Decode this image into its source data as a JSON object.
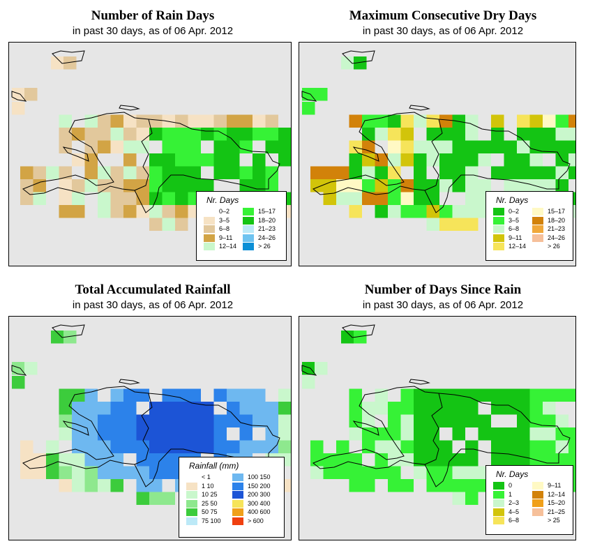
{
  "panels": [
    {
      "id": "rain_days",
      "title": "Number of Rain Days",
      "subtitle": "in past 30 days, as of  06 Apr. 2012",
      "legend": {
        "title": "Nr. Days",
        "items": [
          {
            "label": "0–2",
            "color": "#ffffff"
          },
          {
            "label": "3–5",
            "color": "#f6e2c4"
          },
          {
            "label": "6–8",
            "color": "#e2c89c"
          },
          {
            "label": "9–11",
            "color": "#d2a445"
          },
          {
            "label": "12–14",
            "color": "#c9f7cc"
          },
          {
            "label": "15–17",
            "color": "#36f236"
          },
          {
            "label": "18–20",
            "color": "#14c414"
          },
          {
            "label": "21–23",
            "color": "#bce9f7"
          },
          {
            "label": "24–26",
            "color": "#6ec3f0"
          },
          {
            "label": "> 26",
            "color": "#0b8fd6"
          }
        ]
      }
    },
    {
      "id": "max_dry",
      "title": "Maximum Consecutive Dry Days",
      "subtitle": "in past 30 days, as of  06 Apr. 2012",
      "legend": {
        "title": "Nr. Days",
        "items": [
          {
            "label": "0–2",
            "color": "#14c414"
          },
          {
            "label": "3–5",
            "color": "#36f236"
          },
          {
            "label": "6–8",
            "color": "#c9f7cc"
          },
          {
            "label": "9–11",
            "color": "#d2c40a"
          },
          {
            "label": "12–14",
            "color": "#f6e45a"
          },
          {
            "label": "15–17",
            "color": "#fff9c4"
          },
          {
            "label": "18–20",
            "color": "#d2820a"
          },
          {
            "label": "21–23",
            "color": "#f0a83a"
          },
          {
            "label": "24–26",
            "color": "#f6c09a"
          },
          {
            "label": "> 26",
            "color": "#ffffff"
          }
        ]
      }
    },
    {
      "id": "rainfall",
      "title": "Total Accumulated Rainfall",
      "subtitle": "in past 30 days, as of  06 Apr. 2012",
      "legend": {
        "title": "Rainfall (mm)",
        "items": [
          {
            "label": "< 1",
            "color": "#ffffff"
          },
          {
            "label": "1   10",
            "color": "#f6e2c4"
          },
          {
            "label": "10   25",
            "color": "#c9f7cc"
          },
          {
            "label": "25   50",
            "color": "#8ee88e"
          },
          {
            "label": "50   75",
            "color": "#3ccc3c"
          },
          {
            "label": "75  100",
            "color": "#bce9f7"
          },
          {
            "label": "100  150",
            "color": "#6eb8f0"
          },
          {
            "label": "150  200",
            "color": "#2c82ea"
          },
          {
            "label": "200  300",
            "color": "#1c54d6"
          },
          {
            "label": "300  400",
            "color": "#f6e45a"
          },
          {
            "label": "400  600",
            "color": "#f0a01a"
          },
          {
            "label": "> 600",
            "color": "#f04010"
          }
        ]
      }
    },
    {
      "id": "days_since",
      "title": "Number of Days Since Rain",
      "subtitle": "in past 30 days, as of  06 Apr. 2012",
      "legend": {
        "title": "Nr. Days",
        "items": [
          {
            "label": "0",
            "color": "#14c414"
          },
          {
            "label": "1",
            "color": "#36f236"
          },
          {
            "label": "2–3",
            "color": "#c9f7cc"
          },
          {
            "label": "4–5",
            "color": "#d2c40a"
          },
          {
            "label": "6–8",
            "color": "#f6e45a"
          },
          {
            "label": "9–11",
            "color": "#fff9c4"
          },
          {
            "label": "12–14",
            "color": "#d2820a"
          },
          {
            "label": "15–20",
            "color": "#f0a01a"
          },
          {
            "label": "21–25",
            "color": "#f6c09a"
          },
          {
            "label": "> 25",
            "color": "#ffffff"
          }
        ]
      }
    }
  ]
}
